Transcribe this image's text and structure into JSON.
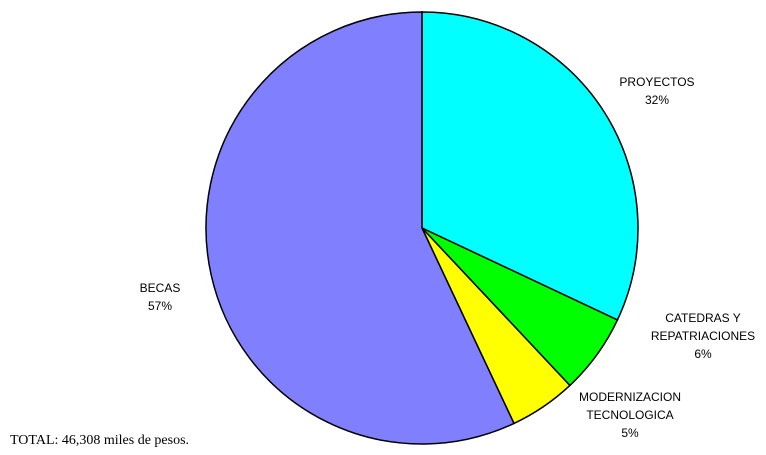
{
  "chart_data": {
    "type": "pie",
    "categories": [
      "PROYECTOS",
      "CATEDRAS Y\nREPATRIACIONES",
      "MODERNIZACION\nTECNOLOGICA",
      "BECAS"
    ],
    "values": [
      32,
      6,
      5,
      57
    ],
    "value_labels": [
      "32%",
      "6%",
      "5%",
      "57%"
    ],
    "colors": [
      "#00ffff",
      "#00ff00",
      "#ffff00",
      "#8080ff"
    ],
    "total": "TOTAL: 46,308 miles de pesos."
  }
}
